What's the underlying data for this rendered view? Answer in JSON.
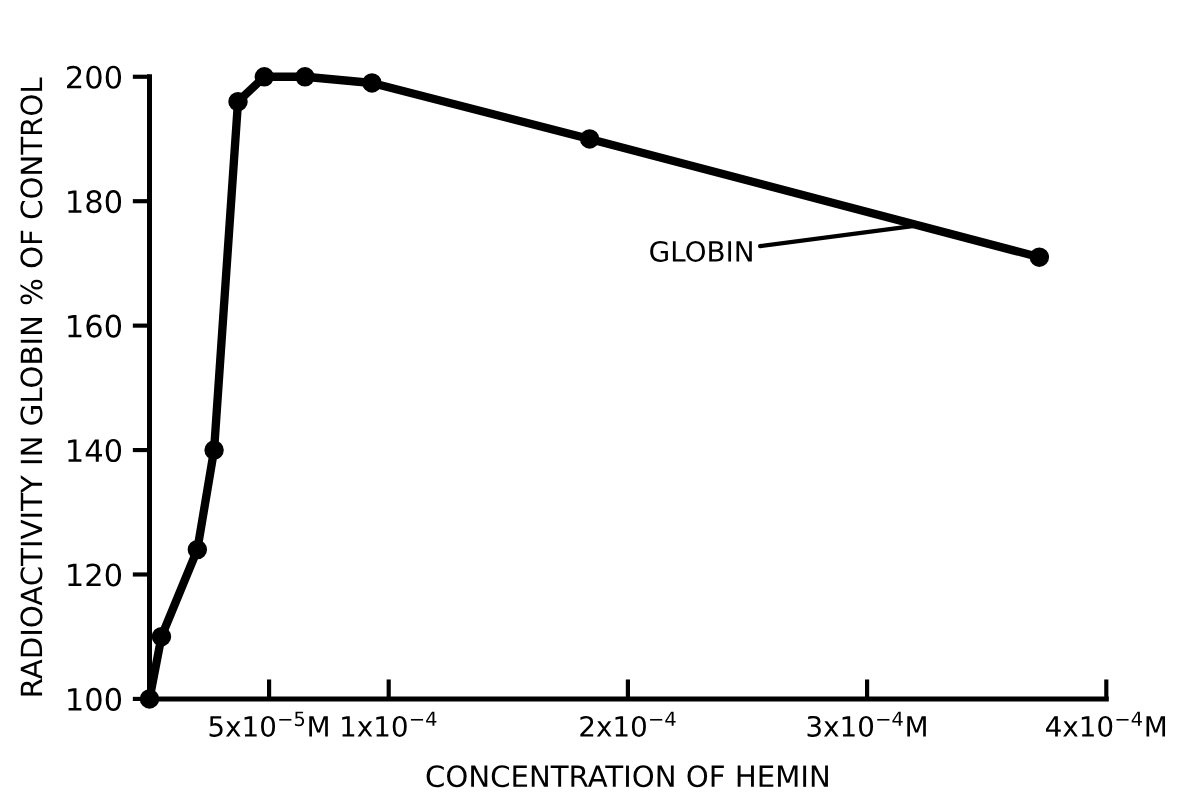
{
  "chart_data": {
    "type": "line",
    "xlabel": "CONCENTRATION OF HEMIN",
    "ylabel": "RADIOACTIVITY IN GLOBIN % OF CONTROL",
    "series": [
      {
        "color": "#000000",
        "x": [
          0,
          5e-06,
          2e-05,
          2.7e-05,
          3.7e-05,
          4.8e-05,
          6.5e-05,
          9.3e-05,
          0.000184,
          0.000372
        ],
        "values": [
          100,
          110,
          124,
          140,
          196,
          200,
          200,
          199,
          190,
          171
        ]
      }
    ],
    "xlim": [
      0,
      0.0004
    ],
    "xticks": [
      {
        "value": 5e-05,
        "label": "5x10$^{−5}$M"
      },
      {
        "value": 0.0001,
        "label": "1x10$^{−4}$"
      },
      {
        "value": 0.0002,
        "label": "2x10$^{−4}$"
      },
      {
        "value": 0.0003,
        "label": "3x10$^{−4}$M"
      },
      {
        "value": 0.0004,
        "label": "4x10$^{−4}$M"
      }
    ],
    "ylim": [
      100,
      200
    ],
    "yticks": [
      100,
      120,
      140,
      160,
      180,
      200
    ],
    "annotations": [
      {
        "text": "GLOBIN",
        "x": 0.000319,
        "y": 176
      }
    ],
    "marker": "circle",
    "line_style": "solid",
    "grid": false
  }
}
